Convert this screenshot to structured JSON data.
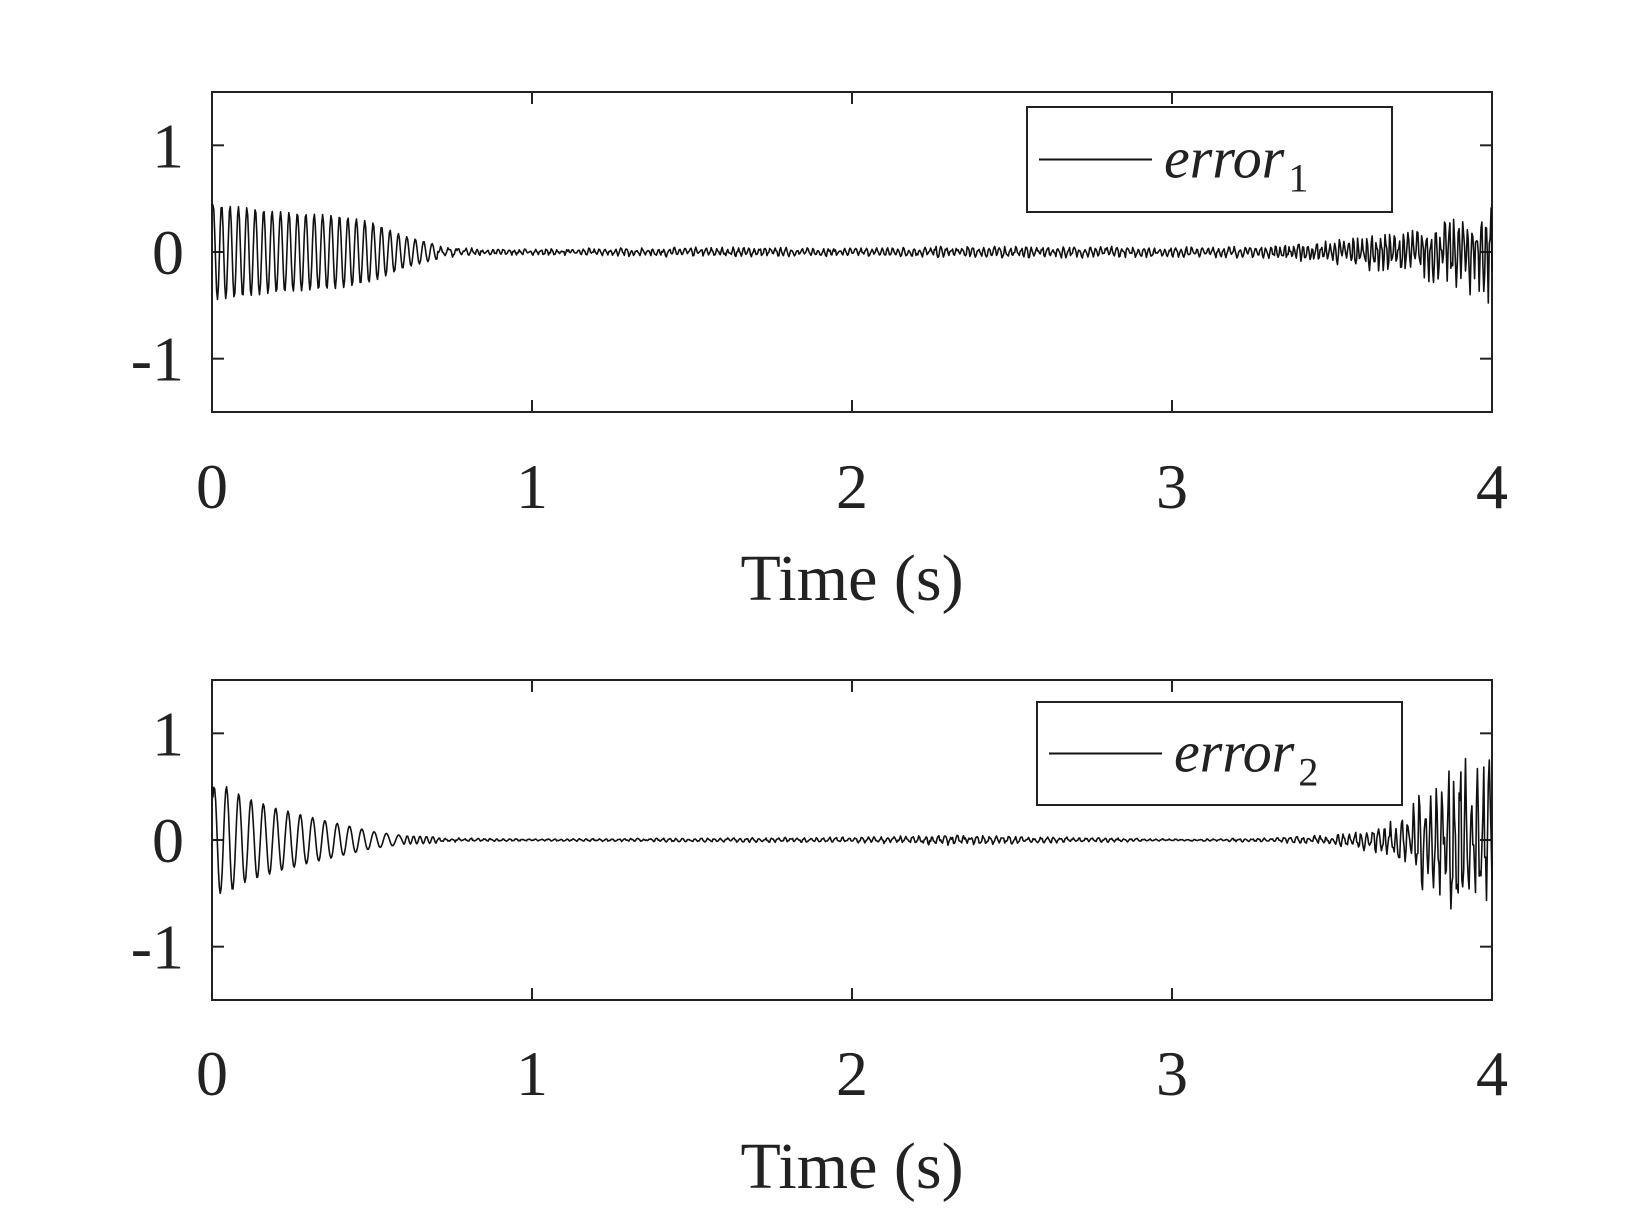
{
  "chart_data": [
    {
      "type": "line",
      "xlabel": "Time (s)",
      "ylabel": "",
      "xlim": [
        0,
        4
      ],
      "ylim": [
        -1.5,
        1.5
      ],
      "xticks": [
        "0",
        "1",
        "2",
        "3",
        "4"
      ],
      "yticks": [
        "1",
        "0",
        "-1"
      ],
      "grid": false,
      "legend_position": "top-right",
      "series": [
        {
          "name": "error",
          "subscript": "1",
          "color": "#111111",
          "x": [
            0,
            0.1,
            0.2,
            0.3,
            0.4,
            0.5,
            0.6,
            0.7,
            0.8,
            1.0,
            1.5,
            2.0,
            2.3,
            2.5,
            2.7,
            3.0,
            3.3,
            3.5,
            3.7,
            3.9,
            4.0
          ],
          "amplitude": [
            0.45,
            0.42,
            0.38,
            0.36,
            0.34,
            0.28,
            0.15,
            0.07,
            0.04,
            0.03,
            0.05,
            0.04,
            0.06,
            0.06,
            0.06,
            0.05,
            0.06,
            0.12,
            0.22,
            0.35,
            0.55
          ]
        }
      ]
    },
    {
      "type": "line",
      "xlabel": "Time (s)",
      "ylabel": "",
      "xlim": [
        0,
        4
      ],
      "ylim": [
        -1.5,
        1.5
      ],
      "xticks": [
        "0",
        "1",
        "2",
        "3",
        "4"
      ],
      "yticks": [
        "1",
        "0",
        "-1"
      ],
      "grid": false,
      "legend_position": "top-right",
      "series": [
        {
          "name": "error",
          "subscript": "2",
          "color": "#111111",
          "x": [
            0,
            0.05,
            0.1,
            0.2,
            0.3,
            0.4,
            0.5,
            0.6,
            0.8,
            1.0,
            1.5,
            2.0,
            2.3,
            2.5,
            3.0,
            3.3,
            3.5,
            3.6,
            3.7,
            3.8,
            3.9,
            4.0
          ],
          "amplitude": [
            0.5,
            0.5,
            0.4,
            0.3,
            0.22,
            0.15,
            0.08,
            0.04,
            0.02,
            0.01,
            0.02,
            0.03,
            0.05,
            0.04,
            0.01,
            0.02,
            0.05,
            0.1,
            0.2,
            0.55,
            0.85,
            0.9
          ]
        }
      ]
    }
  ]
}
